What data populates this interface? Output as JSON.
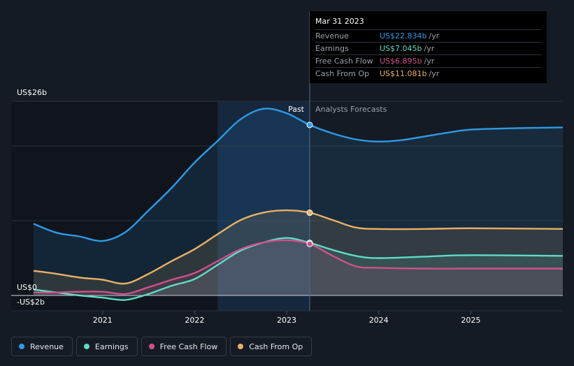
{
  "chart_data": {
    "type": "area",
    "y_labels": [
      "US$26b",
      "US$0",
      "-US$2b"
    ],
    "ylim": [
      -2,
      26
    ],
    "x_ticks": [
      {
        "label": "2021",
        "x": 2021.0
      },
      {
        "label": "2022",
        "x": 2022.0
      },
      {
        "label": "2023",
        "x": 2023.0
      },
      {
        "label": "2024",
        "x": 2024.0
      },
      {
        "label": "2025",
        "x": 2025.0
      }
    ],
    "xlim": [
      2020.25,
      2026.0
    ],
    "highlight_range": [
      2022.25,
      2023.25
    ],
    "divider_x": 2023.25,
    "past_label": "Past",
    "forecast_label": "Analysts Forecasts",
    "series": [
      {
        "name": "Revenue",
        "color": "#2f9ae6",
        "points": [
          [
            2020.25,
            9.6
          ],
          [
            2020.5,
            8.4
          ],
          [
            2020.75,
            7.9
          ],
          [
            2021.0,
            7.3
          ],
          [
            2021.25,
            8.5
          ],
          [
            2021.5,
            11.4
          ],
          [
            2021.75,
            14.4
          ],
          [
            2022.0,
            17.8
          ],
          [
            2022.25,
            20.7
          ],
          [
            2022.5,
            23.6
          ],
          [
            2022.75,
            25.0
          ],
          [
            2023.0,
            24.4
          ],
          [
            2023.25,
            22.834
          ],
          [
            2023.5,
            21.7
          ],
          [
            2023.75,
            20.9
          ],
          [
            2024.0,
            20.6
          ],
          [
            2024.25,
            20.8
          ],
          [
            2024.5,
            21.3
          ],
          [
            2024.75,
            21.8
          ],
          [
            2025.0,
            22.2
          ],
          [
            2025.5,
            22.4
          ],
          [
            2026.0,
            22.5
          ]
        ],
        "marker_x": 2023.25
      },
      {
        "name": "Cash From Op",
        "color": "#eab066",
        "points": [
          [
            2020.25,
            3.3
          ],
          [
            2020.5,
            2.9
          ],
          [
            2020.75,
            2.4
          ],
          [
            2021.0,
            2.1
          ],
          [
            2021.25,
            1.6
          ],
          [
            2021.5,
            2.9
          ],
          [
            2021.75,
            4.6
          ],
          [
            2022.0,
            6.2
          ],
          [
            2022.25,
            8.2
          ],
          [
            2022.5,
            10.1
          ],
          [
            2022.75,
            11.1
          ],
          [
            2023.0,
            11.4
          ],
          [
            2023.25,
            11.081
          ],
          [
            2023.5,
            10.1
          ],
          [
            2023.75,
            9.1
          ],
          [
            2024.0,
            8.9
          ],
          [
            2024.5,
            8.9
          ],
          [
            2025.0,
            9.0
          ],
          [
            2026.0,
            8.9
          ]
        ],
        "marker_x": 2023.25
      },
      {
        "name": "Earnings",
        "color": "#5fdcc8",
        "points": [
          [
            2020.25,
            0.8
          ],
          [
            2020.5,
            0.4
          ],
          [
            2020.75,
            0.0
          ],
          [
            2021.0,
            -0.3
          ],
          [
            2021.25,
            -0.6
          ],
          [
            2021.5,
            0.2
          ],
          [
            2021.75,
            1.3
          ],
          [
            2022.0,
            2.2
          ],
          [
            2022.25,
            4.1
          ],
          [
            2022.5,
            6.0
          ],
          [
            2022.75,
            7.1
          ],
          [
            2023.0,
            7.7
          ],
          [
            2023.25,
            7.045
          ],
          [
            2023.5,
            6.1
          ],
          [
            2023.75,
            5.3
          ],
          [
            2024.0,
            5.0
          ],
          [
            2024.5,
            5.2
          ],
          [
            2025.0,
            5.4
          ],
          [
            2026.0,
            5.3
          ]
        ],
        "marker_x": 2023.25
      },
      {
        "name": "Free Cash Flow",
        "color": "#d0508c",
        "points": [
          [
            2020.25,
            0.4
          ],
          [
            2020.5,
            0.4
          ],
          [
            2020.75,
            0.5
          ],
          [
            2021.0,
            0.5
          ],
          [
            2021.25,
            0.2
          ],
          [
            2021.5,
            1.1
          ],
          [
            2021.75,
            2.1
          ],
          [
            2022.0,
            3.0
          ],
          [
            2022.25,
            4.6
          ],
          [
            2022.5,
            6.2
          ],
          [
            2022.75,
            7.1
          ],
          [
            2023.0,
            7.4
          ],
          [
            2023.25,
            6.895
          ],
          [
            2023.5,
            5.3
          ],
          [
            2023.75,
            3.9
          ],
          [
            2024.0,
            3.7
          ],
          [
            2024.5,
            3.6
          ],
          [
            2025.0,
            3.6
          ],
          [
            2026.0,
            3.6
          ]
        ],
        "marker_x": 2023.25
      }
    ]
  },
  "tooltip": {
    "date": "Mar 31 2023",
    "rows": [
      {
        "label": "Revenue",
        "value": "US$22.834b",
        "unit": "/yr",
        "color": "#2f9ae6"
      },
      {
        "label": "Earnings",
        "value": "US$7.045b",
        "unit": "/yr",
        "color": "#5fdcc8"
      },
      {
        "label": "Free Cash Flow",
        "value": "US$6.895b",
        "unit": "/yr",
        "color": "#d0508c"
      },
      {
        "label": "Cash From Op",
        "value": "US$11.081b",
        "unit": "/yr",
        "color": "#eab066"
      }
    ]
  },
  "legend": [
    {
      "label": "Revenue",
      "color": "#2f9ae6"
    },
    {
      "label": "Earnings",
      "color": "#5fdcc8"
    },
    {
      "label": "Free Cash Flow",
      "color": "#d0508c"
    },
    {
      "label": "Cash From Op",
      "color": "#eab066"
    }
  ]
}
